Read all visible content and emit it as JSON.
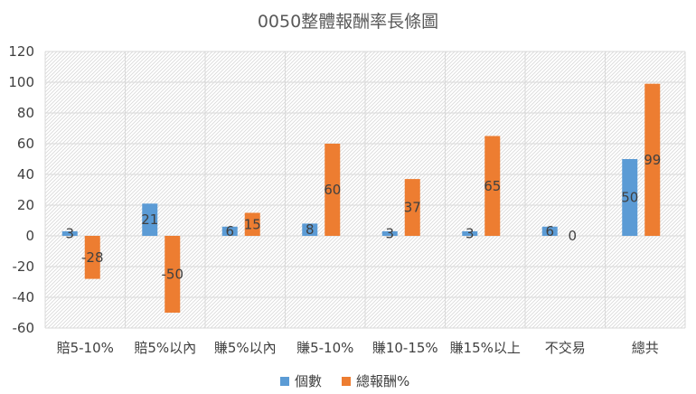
{
  "chart_data": {
    "type": "bar",
    "title": "0050整體報酬率長條圖",
    "xlabel": "",
    "ylabel": "",
    "categories": [
      "賠5-10%",
      "賠5%以內",
      "賺5%以內",
      "賺5-10%",
      "賺10-15%",
      "賺15%以上",
      "不交易",
      "總共"
    ],
    "series": [
      {
        "name": "個數",
        "values": [
          3,
          21,
          6,
          8,
          3,
          3,
          6,
          50
        ],
        "color": "#5b9bd5"
      },
      {
        "name": "總報酬%",
        "values": [
          -28,
          -50,
          15,
          60,
          37,
          65,
          0,
          99
        ],
        "color": "#ed7d31"
      }
    ],
    "ylim": [
      -60,
      120
    ],
    "yticks": [
      -60,
      -40,
      -20,
      0,
      20,
      40,
      60,
      80,
      100,
      120
    ],
    "grid": true,
    "legend": "bottom"
  }
}
